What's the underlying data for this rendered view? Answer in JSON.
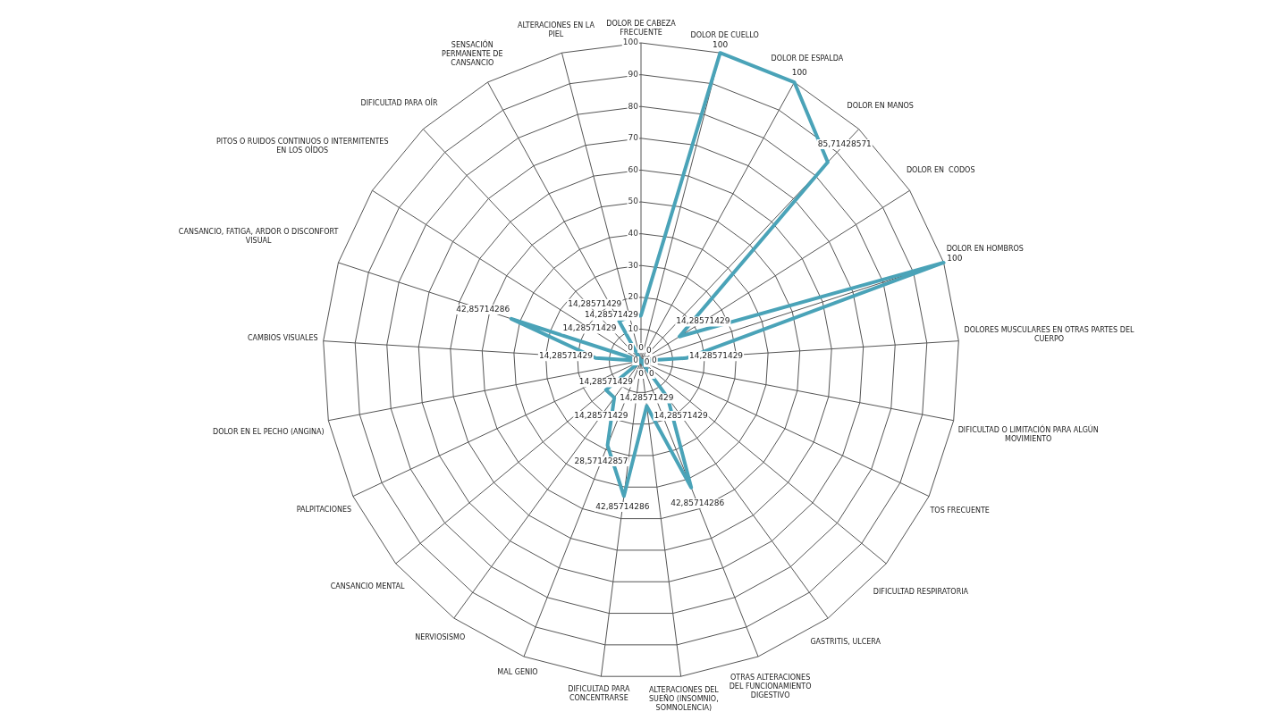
{
  "chart_data": {
    "type": "radar",
    "categories": [
      "DOLOR DE CABEZA FRECUENTE",
      "DOLOR DE CUELLO",
      "DOLOR DE ESPALDA",
      "DOLOR EN MANOS",
      "DOLOR EN  CODOS",
      "DOLOR EN HOMBROS",
      "DOLORES MUSCULARES EN OTRAS PARTES DEL CUERPO",
      "DIFICULTAD O LIMITACIÓN PARA ALGÚN MOVIMIENTO",
      "TOS FRECUENTE",
      "DIFICULTAD RESPIRATORIA",
      "GASTRITIS, ULCERA",
      "OTRAS ALTERACIONES DEL FUNCIONAMIENTO DIGESTIVO",
      "ALTERACIONES DEL SUEÑO (INSOMNIO, SOMNOLENCIA)",
      "DIFICULTAD PARA CONCENTRARSE",
      "MAL GENIO",
      "NERVIOSISMO",
      "CANSANCIO MENTAL",
      "PALPITACIONES",
      "DOLOR EN EL PECHO (ANGINA)",
      "CAMBIOS VISUALES",
      "CANSANCIO, FATIGA, ARDOR O DISCONFORT VISUAL",
      "PITOS O RUIDOS CONTINUOS O INTERMITENTES EN LOS OÍDOS",
      "DIFICULTAD PARA OÍR",
      "SENSACIÓN PERMANENTE DE CANSANCIO",
      "ALTERACIONES EN LA PIEL"
    ],
    "series": [
      {
        "color": "#4aa3b8",
        "values": [
          14.28571429,
          100,
          100,
          85.71428571,
          14.28571429,
          100,
          14.28571429,
          0,
          0,
          0,
          14.28571429,
          42.85714286,
          14.28571429,
          42.85714286,
          28.57142857,
          14.28571429,
          14.28571429,
          0,
          0,
          14.28571429,
          42.85714286,
          0,
          0,
          14.28571429,
          14.28571429
        ],
        "value_labels": [
          "14,28571429",
          "100",
          "100",
          "85,71428571",
          "14,28571429",
          "100",
          "14,28571429",
          "0",
          "0",
          "0",
          "14,28571429",
          "42,85714286",
          "14,28571429",
          "42,85714286",
          "28,57142857",
          "14,28571429",
          "14,28571429",
          "0",
          "0",
          "14,28571429",
          "42,85714286",
          "0",
          "0",
          "14,28571429",
          "14,28571429"
        ]
      }
    ],
    "ylim": [
      0,
      100
    ],
    "yticks": [
      0,
      10,
      20,
      30,
      40,
      50,
      60,
      70,
      80,
      90,
      100
    ],
    "grid": true,
    "legend": false,
    "marker": "none",
    "line_style": "solid"
  }
}
